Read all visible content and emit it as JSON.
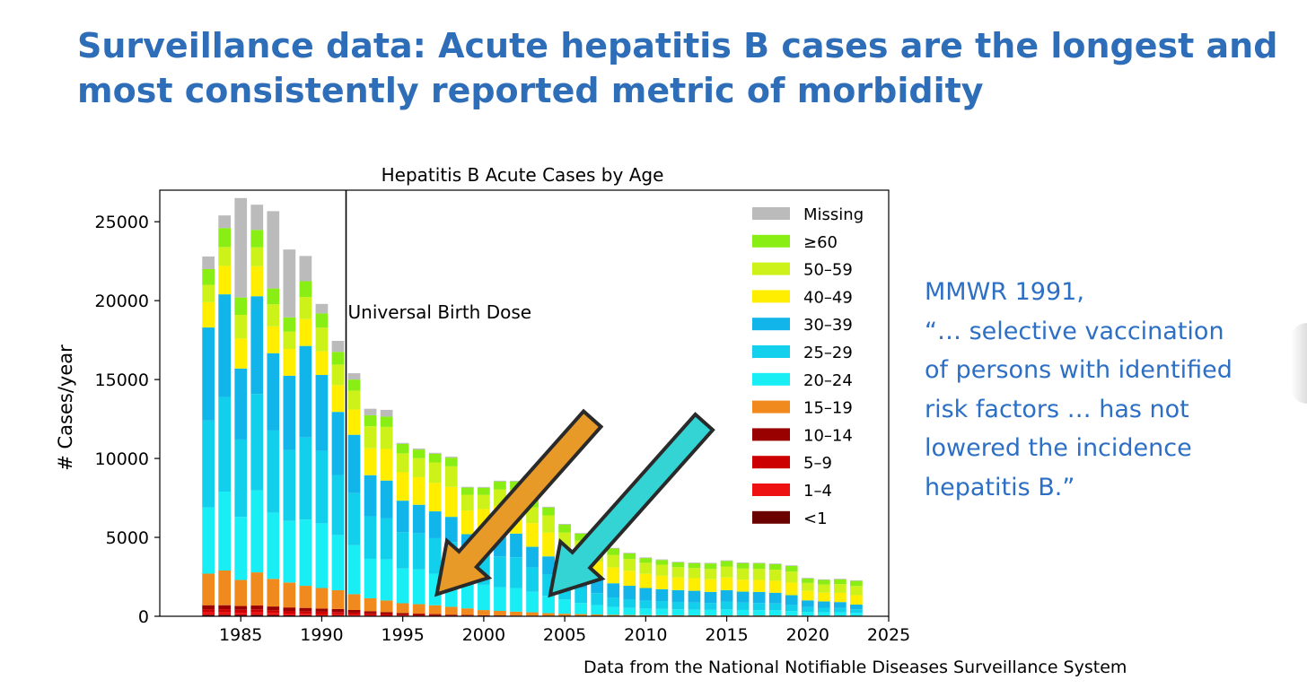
{
  "slide": {
    "title_lines": [
      "Surveillance data: Acute hepatitis B cases are the longest and",
      "most consistently reported metric of morbidity"
    ],
    "quote_lines": [
      "MMWR 1991,",
      "“… selective vaccination",
      "of persons with identified",
      "risk factors … has not",
      "lowered the incidence",
      "hepatitis B.”"
    ],
    "source": "Data from the National Notifiable Diseases Surveillance System"
  },
  "chart_data": {
    "type": "bar",
    "stacked": true,
    "title": "Hepatitis B Acute Cases by Age",
    "xlabel": "",
    "ylabel": "# Cases/year",
    "xlim": [
      1980,
      2025
    ],
    "ylim": [
      0,
      27000
    ],
    "xticks": [
      1985,
      1990,
      1995,
      2000,
      2005,
      2010,
      2015,
      2020,
      2025
    ],
    "yticks": [
      0,
      5000,
      10000,
      15000,
      20000,
      25000
    ],
    "grid": false,
    "legend_position": "top-right",
    "annotation": {
      "text": "Universal Birth Dose",
      "x": 1991.5
    },
    "arrows": [
      {
        "name": "orange-arrow",
        "color": "#e89a28",
        "from": [
          2006.7,
          12500
        ],
        "to": [
          1997.1,
          1400
        ]
      },
      {
        "name": "cyan-arrow",
        "color": "#35d4d4",
        "from": [
          2013.6,
          12300
        ],
        "to": [
          2004.1,
          1350
        ]
      }
    ],
    "x": [
      1983,
      1984,
      1985,
      1986,
      1987,
      1988,
      1989,
      1990,
      1991,
      1992,
      1993,
      1994,
      1995,
      1996,
      1997,
      1998,
      1999,
      2000,
      2001,
      2002,
      2003,
      2004,
      2005,
      2006,
      2007,
      2008,
      2009,
      2010,
      2011,
      2012,
      2013,
      2014,
      2015,
      2016,
      2017,
      2018,
      2019,
      2020,
      2021,
      2022,
      2023
    ],
    "series": [
      {
        "name": "<1",
        "color": "#6b0000",
        "values": [
          100,
          100,
          90,
          100,
          80,
          60,
          60,
          50,
          50,
          40,
          30,
          20,
          15,
          10,
          8,
          6,
          5,
          4,
          3,
          3,
          2,
          2,
          2,
          2,
          1,
          1,
          1,
          1,
          1,
          1,
          1,
          1,
          1,
          1,
          1,
          1,
          1,
          1,
          1,
          1,
          1
        ]
      },
      {
        "name": "1–4",
        "color": "#ee1111",
        "values": [
          150,
          150,
          130,
          150,
          130,
          110,
          100,
          90,
          80,
          70,
          50,
          40,
          30,
          25,
          20,
          15,
          12,
          10,
          8,
          6,
          5,
          4,
          3,
          3,
          2,
          2,
          2,
          2,
          2,
          2,
          2,
          2,
          2,
          2,
          2,
          2,
          2,
          2,
          2,
          2,
          2
        ]
      },
      {
        "name": "5–9",
        "color": "#cc0000",
        "values": [
          200,
          200,
          190,
          190,
          180,
          170,
          160,
          150,
          140,
          120,
          100,
          80,
          60,
          50,
          40,
          30,
          25,
          20,
          15,
          12,
          10,
          8,
          6,
          5,
          4,
          3,
          3,
          3,
          3,
          3,
          3,
          3,
          3,
          3,
          3,
          3,
          3,
          3,
          3,
          3,
          3
        ]
      },
      {
        "name": "10–14",
        "color": "#990000",
        "values": [
          250,
          250,
          240,
          240,
          230,
          220,
          210,
          200,
          190,
          170,
          140,
          120,
          100,
          80,
          70,
          50,
          40,
          30,
          25,
          20,
          15,
          12,
          10,
          8,
          6,
          5,
          5,
          4,
          4,
          4,
          4,
          4,
          4,
          4,
          4,
          4,
          4,
          4,
          4,
          4,
          4
        ]
      },
      {
        "name": "15–19",
        "color": "#f08a1e",
        "values": [
          2000,
          2200,
          1650,
          2100,
          1750,
          1580,
          1400,
          1300,
          1190,
          1000,
          820,
          740,
          620,
          600,
          560,
          500,
          420,
          330,
          290,
          250,
          220,
          170,
          140,
          120,
          100,
          80,
          70,
          60,
          55,
          50,
          45,
          45,
          45,
          40,
          40,
          40,
          35,
          30,
          30,
          30,
          30
        ]
      },
      {
        "name": "20–24",
        "color": "#19eef5",
        "values": [
          4200,
          5000,
          4000,
          5200,
          4200,
          3900,
          4200,
          4100,
          3500,
          3100,
          2500,
          2600,
          2200,
          2200,
          2000,
          1900,
          1600,
          1600,
          1500,
          1500,
          1300,
          1100,
          900,
          700,
          600,
          500,
          450,
          420,
          400,
          380,
          360,
          350,
          380,
          350,
          340,
          330,
          290,
          240,
          220,
          210,
          180
        ]
      },
      {
        "name": "25–29",
        "color": "#12d0ec",
        "values": [
          5500,
          6000,
          4900,
          6100,
          5200,
          4500,
          5200,
          4600,
          3800,
          3300,
          2700,
          2600,
          2300,
          2300,
          2250,
          2200,
          1800,
          2000,
          1950,
          1950,
          1550,
          1350,
          1150,
          950,
          750,
          600,
          550,
          500,
          500,
          470,
          450,
          440,
          500,
          460,
          450,
          430,
          380,
          300,
          280,
          270,
          220
        ]
      },
      {
        "name": "30–39",
        "color": "#12b5ea",
        "values": [
          5900,
          6500,
          4500,
          6200,
          4900,
          4700,
          5800,
          4800,
          4000,
          3700,
          2600,
          2400,
          2000,
          1800,
          1700,
          1600,
          1300,
          1600,
          1500,
          1500,
          1300,
          1150,
          1000,
          950,
          900,
          900,
          850,
          800,
          750,
          750,
          750,
          700,
          720,
          700,
          700,
          680,
          620,
          430,
          400,
          380,
          300
        ]
      },
      {
        "name": "40–49",
        "color": "#ffee00",
        "values": [
          1600,
          1800,
          1900,
          1900,
          1700,
          1700,
          1700,
          1500,
          1700,
          1600,
          1700,
          2000,
          1800,
          1750,
          1800,
          1900,
          1500,
          1200,
          1700,
          1700,
          1500,
          1500,
          1200,
          1200,
          1100,
          1000,
          950,
          900,
          850,
          800,
          800,
          800,
          800,
          760,
          760,
          760,
          800,
          600,
          550,
          580,
          600
        ]
      },
      {
        "name": "50–59",
        "color": "#ccf21a",
        "values": [
          1100,
          1200,
          1500,
          1200,
          1400,
          1100,
          1400,
          1500,
          1300,
          1200,
          1400,
          1400,
          1200,
          1200,
          1300,
          1300,
          1000,
          900,
          1050,
          1100,
          1000,
          1100,
          900,
          850,
          850,
          800,
          750,
          700,
          700,
          650,
          650,
          650,
          700,
          700,
          700,
          700,
          700,
          500,
          520,
          560,
          580
        ]
      },
      {
        "name": "≥60",
        "color": "#88ee14",
        "values": [
          1000,
          1200,
          1100,
          1100,
          1000,
          900,
          1000,
          900,
          800,
          700,
          700,
          650,
          600,
          550,
          550,
          550,
          450,
          450,
          500,
          500,
          450,
          500,
          500,
          450,
          400,
          400,
          350,
          300,
          300,
          300,
          300,
          350,
          350,
          350,
          350,
          350,
          350,
          280,
          290,
          300,
          320
        ]
      },
      {
        "name": "Missing",
        "color": "#bbbbbb",
        "values": [
          800,
          800,
          6300,
          1600,
          4900,
          4300,
          1600,
          600,
          700,
          400,
          410,
          430,
          60,
          60,
          60,
          60,
          50,
          50,
          50,
          50,
          45,
          45,
          45,
          40,
          40,
          40,
          40,
          40,
          40,
          40,
          40,
          40,
          40,
          40,
          40,
          40,
          40,
          40,
          40,
          40,
          40
        ]
      }
    ]
  }
}
